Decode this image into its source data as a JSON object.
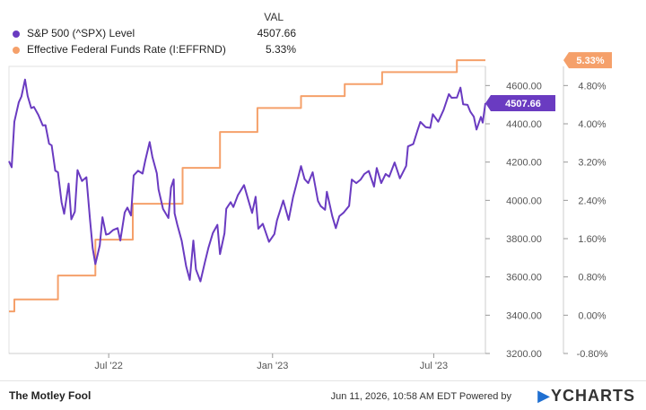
{
  "legend": {
    "header": "VAL",
    "items": [
      {
        "label": "S&P 500 (^SPX) Level",
        "value": "4507.66",
        "color": "#6a3bc1"
      },
      {
        "label": "Effective Federal Funds Rate (I:EFFRND)",
        "value": "5.33%",
        "color": "#f5a06a"
      }
    ]
  },
  "footer": {
    "brand": "The Motley Fool",
    "timestamp": "Jun 11, 2026, 10:58 AM EDT Powered by",
    "ycharts": "YCHARTS"
  },
  "chart_data": {
    "type": "line",
    "x_ticks": [
      {
        "label": "Jul '22",
        "date": "2022-07-01"
      },
      {
        "label": "Jan '23",
        "date": "2023-01-01"
      },
      {
        "label": "Jul '23",
        "date": "2023-07-01"
      }
    ],
    "xlim": [
      "2022-03-11",
      "2023-08-28"
    ],
    "left_axis": {
      "ticks": [
        "4600.00",
        "4400.00",
        "4200.00",
        "4000.00",
        "3800.00",
        "3600.00",
        "3400.00",
        "3200.00"
      ],
      "ylim": [
        3200,
        4700
      ]
    },
    "right_axis": {
      "ticks": [
        "4.80%",
        "4.00%",
        "3.20%",
        "2.40%",
        "1.60%",
        "0.80%",
        "0.00%",
        "-0.80%"
      ],
      "ylim": [
        -0.8,
        5.2
      ]
    },
    "series": [
      {
        "name": "S&P 500 (^SPX) Level",
        "axis": "left",
        "color": "#6a3bc1",
        "end_label": "4507.66",
        "points": [
          [
            "2022-03-11",
            4205
          ],
          [
            "2022-03-14",
            4173
          ],
          [
            "2022-03-17",
            4411
          ],
          [
            "2022-03-22",
            4512
          ],
          [
            "2022-03-25",
            4543
          ],
          [
            "2022-03-29",
            4631
          ],
          [
            "2022-04-01",
            4546
          ],
          [
            "2022-04-05",
            4482
          ],
          [
            "2022-04-08",
            4488
          ],
          [
            "2022-04-13",
            4446
          ],
          [
            "2022-04-18",
            4391
          ],
          [
            "2022-04-21",
            4393
          ],
          [
            "2022-04-25",
            4296
          ],
          [
            "2022-04-28",
            4287
          ],
          [
            "2022-05-02",
            4155
          ],
          [
            "2022-05-05",
            4147
          ],
          [
            "2022-05-09",
            3991
          ],
          [
            "2022-05-12",
            3930
          ],
          [
            "2022-05-17",
            4088
          ],
          [
            "2022-05-20",
            3901
          ],
          [
            "2022-05-24",
            3941
          ],
          [
            "2022-05-27",
            4158
          ],
          [
            "2022-06-01",
            4101
          ],
          [
            "2022-06-06",
            4121
          ],
          [
            "2022-06-10",
            3901
          ],
          [
            "2022-06-13",
            3750
          ],
          [
            "2022-06-16",
            3667
          ],
          [
            "2022-06-21",
            3765
          ],
          [
            "2022-06-24",
            3912
          ],
          [
            "2022-06-28",
            3821
          ],
          [
            "2022-07-01",
            3825
          ],
          [
            "2022-07-06",
            3845
          ],
          [
            "2022-07-11",
            3855
          ],
          [
            "2022-07-14",
            3790
          ],
          [
            "2022-07-19",
            3937
          ],
          [
            "2022-07-22",
            3962
          ],
          [
            "2022-07-26",
            3921
          ],
          [
            "2022-07-29",
            4130
          ],
          [
            "2022-08-03",
            4155
          ],
          [
            "2022-08-08",
            4140
          ],
          [
            "2022-08-11",
            4208
          ],
          [
            "2022-08-16",
            4305
          ],
          [
            "2022-08-19",
            4228
          ],
          [
            "2022-08-24",
            4141
          ],
          [
            "2022-08-26",
            4057
          ],
          [
            "2022-08-31",
            3955
          ],
          [
            "2022-09-06",
            3908
          ],
          [
            "2022-09-09",
            4067
          ],
          [
            "2022-09-12",
            4110
          ],
          [
            "2022-09-13",
            3932
          ],
          [
            "2022-09-16",
            3873
          ],
          [
            "2022-09-21",
            3789
          ],
          [
            "2022-09-26",
            3655
          ],
          [
            "2022-09-30",
            3585
          ],
          [
            "2022-10-04",
            3790
          ],
          [
            "2022-10-07",
            3639
          ],
          [
            "2022-10-12",
            3577
          ],
          [
            "2022-10-17",
            3677
          ],
          [
            "2022-10-21",
            3752
          ],
          [
            "2022-10-26",
            3830
          ],
          [
            "2022-10-31",
            3872
          ],
          [
            "2022-11-03",
            3719
          ],
          [
            "2022-11-08",
            3828
          ],
          [
            "2022-11-10",
            3956
          ],
          [
            "2022-11-15",
            3991
          ],
          [
            "2022-11-18",
            3965
          ],
          [
            "2022-11-23",
            4027
          ],
          [
            "2022-11-30",
            4080
          ],
          [
            "2022-12-05",
            3998
          ],
          [
            "2022-12-09",
            3934
          ],
          [
            "2022-12-13",
            4019
          ],
          [
            "2022-12-16",
            3852
          ],
          [
            "2022-12-21",
            3878
          ],
          [
            "2022-12-28",
            3783
          ],
          [
            "2023-01-03",
            3824
          ],
          [
            "2023-01-06",
            3895
          ],
          [
            "2023-01-11",
            3969
          ],
          [
            "2023-01-13",
            3999
          ],
          [
            "2023-01-19",
            3898
          ],
          [
            "2023-01-24",
            4016
          ],
          [
            "2023-01-27",
            4070
          ],
          [
            "2023-02-02",
            4179
          ],
          [
            "2023-02-06",
            4111
          ],
          [
            "2023-02-10",
            4090
          ],
          [
            "2023-02-15",
            4147
          ],
          [
            "2023-02-21",
            3997
          ],
          [
            "2023-02-24",
            3970
          ],
          [
            "2023-03-01",
            3951
          ],
          [
            "2023-03-03",
            4045
          ],
          [
            "2023-03-09",
            3918
          ],
          [
            "2023-03-13",
            3855
          ],
          [
            "2023-03-17",
            3917
          ],
          [
            "2023-03-22",
            3937
          ],
          [
            "2023-03-28",
            3971
          ],
          [
            "2023-03-31",
            4109
          ],
          [
            "2023-04-05",
            4090
          ],
          [
            "2023-04-10",
            4109
          ],
          [
            "2023-04-14",
            4137
          ],
          [
            "2023-04-19",
            4154
          ],
          [
            "2023-04-25",
            4072
          ],
          [
            "2023-04-28",
            4169
          ],
          [
            "2023-05-03",
            4090
          ],
          [
            "2023-05-08",
            4138
          ],
          [
            "2023-05-12",
            4124
          ],
          [
            "2023-05-18",
            4198
          ],
          [
            "2023-05-24",
            4115
          ],
          [
            "2023-05-31",
            4180
          ],
          [
            "2023-06-02",
            4282
          ],
          [
            "2023-06-08",
            4294
          ],
          [
            "2023-06-13",
            4369
          ],
          [
            "2023-06-16",
            4410
          ],
          [
            "2023-06-22",
            4382
          ],
          [
            "2023-06-27",
            4379
          ],
          [
            "2023-06-30",
            4450
          ],
          [
            "2023-07-06",
            4411
          ],
          [
            "2023-07-12",
            4472
          ],
          [
            "2023-07-18",
            4555
          ],
          [
            "2023-07-21",
            4536
          ],
          [
            "2023-07-27",
            4537
          ],
          [
            "2023-07-31",
            4589
          ],
          [
            "2023-08-03",
            4502
          ],
          [
            "2023-08-08",
            4499
          ],
          [
            "2023-08-11",
            4464
          ],
          [
            "2023-08-15",
            4437
          ],
          [
            "2023-08-18",
            4370
          ],
          [
            "2023-08-23",
            4436
          ],
          [
            "2023-08-25",
            4406
          ],
          [
            "2023-08-28",
            4507.66
          ]
        ]
      },
      {
        "name": "Effective Federal Funds Rate (I:EFFRND)",
        "axis": "right",
        "color": "#f5a06a",
        "end_label": "5.33%",
        "points": [
          [
            "2022-03-11",
            0.08
          ],
          [
            "2022-03-17",
            0.08
          ],
          [
            "2022-03-17",
            0.33
          ],
          [
            "2022-05-05",
            0.33
          ],
          [
            "2022-05-05",
            0.83
          ],
          [
            "2022-06-16",
            0.83
          ],
          [
            "2022-06-16",
            1.58
          ],
          [
            "2022-07-28",
            1.58
          ],
          [
            "2022-07-28",
            2.33
          ],
          [
            "2022-09-22",
            2.33
          ],
          [
            "2022-09-22",
            3.08
          ],
          [
            "2022-11-03",
            3.08
          ],
          [
            "2022-11-03",
            3.83
          ],
          [
            "2022-12-15",
            3.83
          ],
          [
            "2022-12-15",
            4.33
          ],
          [
            "2023-02-02",
            4.33
          ],
          [
            "2023-02-02",
            4.58
          ],
          [
            "2023-03-23",
            4.58
          ],
          [
            "2023-03-23",
            4.83
          ],
          [
            "2023-05-04",
            4.83
          ],
          [
            "2023-05-04",
            5.08
          ],
          [
            "2023-07-27",
            5.08
          ],
          [
            "2023-07-27",
            5.33
          ],
          [
            "2023-08-28",
            5.33
          ]
        ]
      }
    ]
  }
}
